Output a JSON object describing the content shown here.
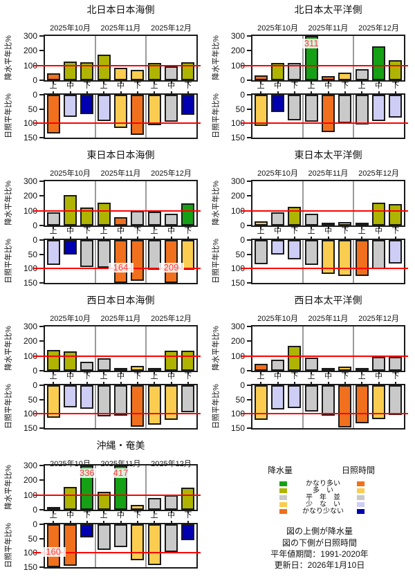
{
  "months": [
    "2025年10月",
    "2025年11月",
    "2025年12月"
  ],
  "terciles": [
    "上",
    "中",
    "下"
  ],
  "ref_line": 100,
  "axes": {
    "precip": {
      "label": "降水平年比%",
      "ticks": [
        300,
        200,
        100,
        0
      ],
      "ylim": [
        0,
        300
      ]
    },
    "sun": {
      "label": "日照平年比%",
      "ticks": [
        0,
        50,
        100,
        150
      ],
      "ylim": [
        0,
        150
      ],
      "inverted": true
    }
  },
  "palettes": {
    "precip": {
      "かなり多い": "#15A015",
      "多い": "#AFB400",
      "平年並": "#C9C9C9",
      "少ない": "#FACD50",
      "かなり少ない": "#F0701E"
    },
    "sun": {
      "かなり多い": "#F0701E",
      "多い": "#FACD50",
      "平年並": "#C9C9C9",
      "少ない": "#CDCDF5",
      "かなり少ない": "#0000B0"
    }
  },
  "colors": {
    "reference_line": "#FF0000",
    "clip_label": "#FF3C3C",
    "separator": "#9B9B9B",
    "outline": "#1A1A1A"
  },
  "chart_data": [
    {
      "type": "bar",
      "title": "北日本日本海側",
      "precip": {
        "values": [
          45,
          125,
          120,
          175,
          85,
          72,
          115,
          95,
          120
        ],
        "categories": [
          "かなり少ない",
          "多い",
          "多い",
          "多い",
          "少ない",
          "少ない",
          "多い",
          "平年並",
          "多い"
        ]
      },
      "sun": {
        "values": [
          135,
          78,
          68,
          93,
          115,
          140,
          107,
          95,
          70
        ],
        "categories": [
          "かなり多い",
          "少ない",
          "かなり少ない",
          "少ない",
          "多い",
          "かなり多い",
          "多い",
          "平年並",
          "かなり少ない"
        ]
      }
    },
    {
      "type": "bar",
      "title": "北日本太平洋側",
      "precip": {
        "values": [
          35,
          115,
          115,
          311,
          30,
          50,
          75,
          230,
          135
        ],
        "categories": [
          "かなり少ない",
          "多い",
          "平年並",
          "かなり多い",
          "かなり少ない",
          "少ない",
          "平年並",
          "かなり多い",
          "多い"
        ]
      },
      "sun": {
        "values": [
          110,
          60,
          90,
          95,
          130,
          100,
          105,
          92,
          80
        ],
        "categories": [
          "多い",
          "かなり少ない",
          "平年並",
          "平年並",
          "かなり多い",
          "平年並",
          "平年並",
          "少ない",
          "少ない"
        ]
      }
    },
    {
      "type": "bar",
      "title": "東日本日本海側",
      "precip": {
        "values": [
          90,
          205,
          120,
          155,
          55,
          100,
          95,
          80,
          150
        ],
        "categories": [
          "平年並",
          "多い",
          "多い",
          "多い",
          "かなり少ない",
          "平年並",
          "平年並",
          "平年並",
          "かなり多い"
        ]
      },
      "sun": {
        "values": [
          88,
          50,
          95,
          97,
          164,
          143,
          105,
          209,
          105
        ],
        "categories": [
          "少ない",
          "かなり少ない",
          "平年並",
          "平年並",
          "かなり多い",
          "かなり多い",
          "平年並",
          "かなり多い",
          "多い"
        ]
      }
    },
    {
      "type": "bar",
      "title": "東日本太平洋側",
      "precip": {
        "values": [
          28,
          90,
          128,
          78,
          5,
          22,
          8,
          155,
          145
        ],
        "categories": [
          "少ない",
          "平年並",
          "多い",
          "平年並",
          "かなり少ない",
          "少ない",
          "かなり少ない",
          "多い",
          "多い"
        ]
      },
      "sun": {
        "values": [
          85,
          50,
          67,
          88,
          118,
          125,
          125,
          102,
          82
        ],
        "categories": [
          "平年並",
          "少ない",
          "少ない",
          "平年並",
          "多い",
          "多い",
          "かなり多い",
          "平年並",
          "少ない"
        ]
      }
    },
    {
      "type": "bar",
      "title": "西日本日本海側",
      "precip": {
        "values": [
          140,
          130,
          60,
          85,
          20,
          35,
          15,
          135,
          135
        ],
        "categories": [
          "多い",
          "多い",
          "平年並",
          "平年並",
          "かなり少ない",
          "少ない",
          "かなり少ない",
          "多い",
          "多い"
        ]
      },
      "sun": {
        "values": [
          113,
          78,
          82,
          108,
          106,
          145,
          138,
          122,
          95
        ],
        "categories": [
          "多い",
          "少ない",
          "少ない",
          "平年並",
          "平年並",
          "かなり多い",
          "多い",
          "多い",
          "平年並"
        ]
      }
    },
    {
      "type": "bar",
      "title": "西日本太平洋側",
      "precip": {
        "values": [
          45,
          75,
          170,
          90,
          20,
          30,
          3,
          95,
          95
        ],
        "categories": [
          "かなり少ない",
          "平年並",
          "多い",
          "平年並",
          "少ない",
          "少ない",
          "かなり少ない",
          "平年並",
          "平年並"
        ]
      },
      "sun": {
        "values": [
          120,
          85,
          80,
          92,
          107,
          148,
          132,
          118,
          103
        ],
        "categories": [
          "多い",
          "少ない",
          "少ない",
          "平年並",
          "平年並",
          "かなり多い",
          "かなり多い",
          "多い",
          "平年並"
        ]
      }
    },
    {
      "type": "bar",
      "title": "沖縄・奄美",
      "precip": {
        "values": [
          10,
          155,
          336,
          120,
          417,
          35,
          80,
          100,
          150
        ],
        "categories": [
          "かなり少ない",
          "多い",
          "かなり多い",
          "多い",
          "かなり多い",
          "少ない",
          "平年並",
          "平年並",
          "多い"
        ]
      },
      "sun": {
        "values": [
          160,
          145,
          45,
          90,
          80,
          127,
          142,
          97,
          55
        ],
        "categories": [
          "かなり多い",
          "かなり多い",
          "かなり少ない",
          "平年並",
          "平年並",
          "多い",
          "多い",
          "平年並",
          "かなり少ない"
        ]
      }
    }
  ],
  "legend": {
    "col_headers": {
      "precip": "降水量",
      "sun": "日照時間"
    },
    "rows": [
      {
        "label": "かなり多い",
        "key": "かなり多い"
      },
      {
        "label": "多　い",
        "key": "多い"
      },
      {
        "label": "平　年　並",
        "key": "平年並"
      },
      {
        "label": "少　な　い",
        "key": "少ない"
      },
      {
        "label": "かなり少ない",
        "key": "かなり少ない"
      }
    ],
    "notes": [
      "図の上側が降水量",
      "図の下側が日照時間",
      "平年値期間：1991-2020年",
      "更新日：2026年1月10日"
    ]
  }
}
